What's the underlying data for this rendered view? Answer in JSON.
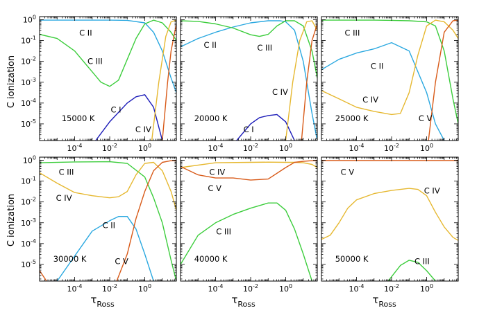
{
  "figure": {
    "ylabel": "C ionization",
    "xlabel_main": "τ",
    "xlabel_sub": "Ross"
  },
  "ions": [
    "C I",
    "C II",
    "C III",
    "C IV",
    "C V"
  ],
  "colors": {
    "C I": "#1a1ab8",
    "C II": "#2aa8e0",
    "C III": "#3ccd3c",
    "C IV": "#e6b830",
    "C V": "#d85a18"
  },
  "x_ticks": [
    {
      "base": "10",
      "exp": "-4",
      "v": -4
    },
    {
      "base": "10",
      "exp": "-2",
      "v": -2
    },
    {
      "base": "10",
      "exp": "0",
      "v": 0
    }
  ],
  "y_ticks": [
    {
      "base": "10",
      "exp": "0",
      "v": 0
    },
    {
      "base": "10",
      "exp": "-1",
      "v": -1
    },
    {
      "base": "10",
      "exp": "-2",
      "v": -2
    },
    {
      "base": "10",
      "exp": "-3",
      "v": -3
    },
    {
      "base": "10",
      "exp": "-4",
      "v": -4
    },
    {
      "base": "10",
      "exp": "-5",
      "v": -5
    }
  ],
  "chart_data": [
    {
      "type": "line",
      "temperature": "15000 K",
      "xscale": "log",
      "yscale": "log",
      "xlim_log10": [
        -6,
        1.8
      ],
      "ylim_log10": [
        -5.8,
        0.15
      ],
      "ion_labels": [
        "C II",
        "C III",
        "C I",
        "C IV"
      ],
      "series": [
        {
          "name": "C II",
          "x": [
            -6,
            -4,
            -2,
            -1,
            0,
            0.5,
            1,
            1.5,
            1.8
          ],
          "y": [
            -0.02,
            -0.02,
            -0.02,
            -0.03,
            -0.15,
            -0.6,
            -1.5,
            -2.8,
            -3.5
          ]
        },
        {
          "name": "C III",
          "x": [
            -6,
            -5,
            -4,
            -3,
            -2.5,
            -2,
            -1.5,
            -1,
            -0.5,
            0,
            0.5,
            1,
            1.5,
            1.8
          ],
          "y": [
            -0.7,
            -0.9,
            -1.5,
            -2.5,
            -3,
            -3.2,
            -2.9,
            -1.9,
            -0.9,
            -0.2,
            -0.02,
            -0.15,
            -0.6,
            -1
          ]
        },
        {
          "name": "C I",
          "x": [
            -2.8,
            -2,
            -1,
            -0.5,
            0,
            0.5,
            1
          ],
          "y": [
            -5.8,
            -4.9,
            -4,
            -3.7,
            -3.6,
            -4.2,
            -5.8
          ]
        },
        {
          "name": "C IV",
          "x": [
            0.4,
            0.8,
            1.2,
            1.5,
            1.8
          ],
          "y": [
            -5.8,
            -3,
            -0.8,
            -0.1,
            -0.02
          ]
        },
        {
          "name": "C V",
          "x": [
            1,
            1.3,
            1.5,
            1.8
          ],
          "y": [
            -5.8,
            -3,
            -1.5,
            -0.2
          ]
        }
      ]
    },
    {
      "type": "line",
      "temperature": "20000 K",
      "xscale": "log",
      "yscale": "log",
      "xlim_log10": [
        -6,
        1.8
      ],
      "ylim_log10": [
        -5.8,
        0.15
      ],
      "ion_labels": [
        "C II",
        "C III",
        "C IV",
        "C I"
      ],
      "series": [
        {
          "name": "C II",
          "x": [
            -6,
            -5,
            -4,
            -3,
            -2,
            -1,
            -0.3,
            0,
            0.5,
            1,
            1.5,
            1.8
          ],
          "y": [
            -1.3,
            -0.9,
            -0.6,
            -0.35,
            -0.15,
            -0.05,
            -0.05,
            -0.1,
            -0.5,
            -2,
            -4.5,
            -5.8
          ]
        },
        {
          "name": "C III",
          "x": [
            -6,
            -5,
            -4,
            -3,
            -2,
            -1.5,
            -1,
            -0.5,
            0,
            0.5,
            1,
            1.5,
            1.8
          ],
          "y": [
            -0.05,
            -0.08,
            -0.2,
            -0.4,
            -0.72,
            -0.8,
            -0.7,
            -0.3,
            -0.05,
            -0.05,
            -0.3,
            -1.5,
            -2.8
          ]
        },
        {
          "name": "C I",
          "x": [
            -2.8,
            -2,
            -1.5,
            -1,
            -0.5,
            0,
            0.5
          ],
          "y": [
            -5.8,
            -5,
            -4.7,
            -4.6,
            -4.55,
            -4.9,
            -5.8
          ]
        },
        {
          "name": "C IV",
          "x": [
            0,
            0.4,
            0.8,
            1.2,
            1.5,
            1.8
          ],
          "y": [
            -5.8,
            -3,
            -1,
            -0.1,
            -0.05,
            -0.5
          ]
        },
        {
          "name": "C V",
          "x": [
            0.9,
            1.2,
            1.5,
            1.8
          ],
          "y": [
            -5.8,
            -3,
            -1,
            -0.2
          ]
        }
      ]
    },
    {
      "type": "line",
      "temperature": "25000 K",
      "xscale": "log",
      "yscale": "log",
      "xlim_log10": [
        -6,
        1.8
      ],
      "ylim_log10": [
        -5.8,
        0.15
      ],
      "ion_labels": [
        "C III",
        "C II",
        "C IV",
        "C V"
      ],
      "series": [
        {
          "name": "C III",
          "x": [
            -6,
            -3,
            -2,
            -1,
            0,
            0.5,
            1,
            1.5,
            1.8
          ],
          "y": [
            -0.02,
            -0.02,
            -0.03,
            -0.05,
            -0.1,
            -0.3,
            -1.5,
            -3.8,
            -5
          ]
        },
        {
          "name": "C II",
          "x": [
            -6,
            -5,
            -4,
            -3,
            -2,
            -1,
            0,
            0.5,
            1
          ],
          "y": [
            -2.4,
            -1.9,
            -1.6,
            -1.4,
            -1.1,
            -1.5,
            -3.5,
            -5,
            -5.8
          ]
        },
        {
          "name": "C IV",
          "x": [
            -6,
            -5,
            -4,
            -3,
            -2,
            -1.5,
            -1,
            -0.5,
            0,
            0.5,
            1,
            1.5,
            1.8
          ],
          "y": [
            -3.4,
            -3.8,
            -4.2,
            -4.4,
            -4.55,
            -4.5,
            -3.5,
            -1.7,
            -0.3,
            -0.02,
            -0.1,
            -0.5,
            -0.9
          ]
        },
        {
          "name": "C V",
          "x": [
            0.1,
            0.5,
            1,
            1.5,
            1.8
          ],
          "y": [
            -5.8,
            -3,
            -0.6,
            -0.05,
            -0.02
          ]
        }
      ]
    },
    {
      "type": "line",
      "temperature": "30000 K",
      "xscale": "log",
      "yscale": "log",
      "xlim_log10": [
        -6,
        1.8
      ],
      "ylim_log10": [
        -5.8,
        0.15
      ],
      "ion_labels": [
        "C III",
        "C IV",
        "C II",
        "C V"
      ],
      "series": [
        {
          "name": "C III",
          "x": [
            -6,
            -4,
            -2,
            -1,
            0,
            0.5,
            1,
            1.5,
            1.8
          ],
          "y": [
            -0.12,
            -0.08,
            -0.07,
            -0.15,
            -0.8,
            -1.8,
            -3,
            -4.8,
            -5.8
          ]
        },
        {
          "name": "C IV",
          "x": [
            -6,
            -5,
            -4,
            -3,
            -2,
            -1.5,
            -1,
            -0.5,
            0,
            0.5,
            1,
            1.5,
            1.8
          ],
          "y": [
            -0.6,
            -1.1,
            -1.55,
            -1.7,
            -1.8,
            -1.75,
            -1.5,
            -0.7,
            -0.15,
            -0.1,
            -0.5,
            -1.5,
            -2.4
          ]
        },
        {
          "name": "C II",
          "x": [
            -5,
            -4,
            -3,
            -2,
            -1.5,
            -1,
            -0.5,
            0,
            0.5,
            1
          ],
          "y": [
            -5.8,
            -4.6,
            -3.4,
            -2.9,
            -2.7,
            -2.7,
            -3.3,
            -4.5,
            -5.8,
            -6.5
          ]
        },
        {
          "name": "C V",
          "x": [
            -6,
            -5.6
          ],
          "y": [
            -5.3,
            -5.8
          ]
        },
        {
          "name": "C V",
          "x": [
            -1.6,
            -1,
            -0.5,
            0,
            0.5,
            1,
            1.5,
            1.8
          ],
          "y": [
            -5.8,
            -4.5,
            -2.8,
            -1.5,
            -0.5,
            -0.1,
            -0.02,
            -0.02
          ]
        }
      ]
    },
    {
      "type": "line",
      "temperature": "40000 K",
      "xscale": "log",
      "yscale": "log",
      "xlim_log10": [
        -6,
        1.8
      ],
      "ylim_log10": [
        -5.8,
        0.15
      ],
      "ion_labels": [
        "C IV",
        "C V",
        "C III"
      ],
      "series": [
        {
          "name": "C IV",
          "x": [
            -6,
            -4,
            -2,
            -1,
            0,
            0.5,
            1,
            1.5,
            1.8
          ],
          "y": [
            -0.35,
            -0.12,
            -0.1,
            -0.09,
            -0.1,
            -0.1,
            -0.12,
            -0.2,
            -0.35
          ]
        },
        {
          "name": "C V",
          "x": [
            -6,
            -5,
            -4,
            -3,
            -2,
            -1,
            0,
            0.5,
            1,
            1.5,
            1.8
          ],
          "y": [
            -0.3,
            -0.7,
            -0.85,
            -0.85,
            -0.95,
            -0.9,
            -0.35,
            -0.1,
            -0.05,
            -0.02,
            -0.02
          ]
        },
        {
          "name": "C III",
          "x": [
            -6,
            -5,
            -4,
            -3,
            -2,
            -1,
            -0.5,
            0,
            0.5,
            1,
            1.5,
            1.8
          ],
          "y": [
            -5,
            -3.6,
            -3,
            -2.6,
            -2.3,
            -2.05,
            -2.05,
            -2.4,
            -3.3,
            -4.5,
            -5.8,
            -7
          ]
        }
      ]
    },
    {
      "type": "line",
      "temperature": "50000 K",
      "xscale": "log",
      "yscale": "log",
      "xlim_log10": [
        -6,
        1.8
      ],
      "ylim_log10": [
        -5.8,
        0.15
      ],
      "ion_labels": [
        "C V",
        "C IV",
        "C III"
      ],
      "series": [
        {
          "name": "C V",
          "x": [
            -6,
            -4,
            -2,
            0,
            1.8
          ],
          "y": [
            -0.01,
            -0.01,
            -0.01,
            -0.01,
            -0.01
          ]
        },
        {
          "name": "C IV",
          "x": [
            -6,
            -5.5,
            -5,
            -4.5,
            -4,
            -3,
            -2,
            -1,
            -0.5,
            0,
            0.5,
            1,
            1.5,
            1.8
          ],
          "y": [
            -3.8,
            -3.6,
            -3,
            -2.3,
            -1.9,
            -1.6,
            -1.45,
            -1.35,
            -1.4,
            -1.7,
            -2.5,
            -3.2,
            -3.7,
            -3.85
          ]
        },
        {
          "name": "C III",
          "x": [
            -2.2,
            -1.5,
            -1,
            -0.5,
            0,
            0.5
          ],
          "y": [
            -5.8,
            -5.05,
            -4.8,
            -4.9,
            -5.3,
            -5.8
          ]
        }
      ]
    }
  ]
}
